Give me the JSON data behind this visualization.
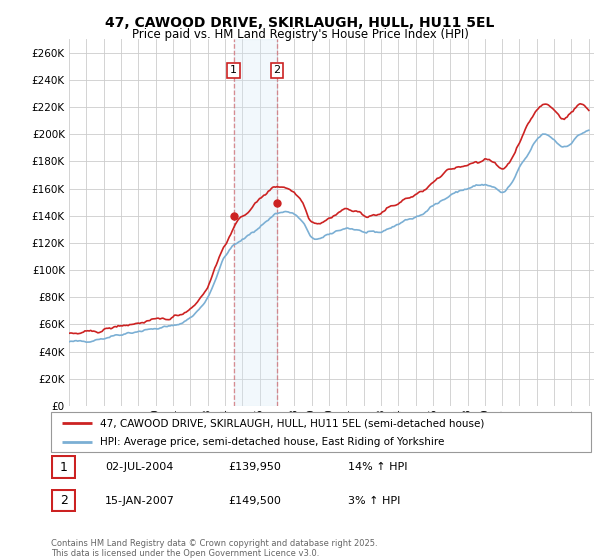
{
  "title": "47, CAWOOD DRIVE, SKIRLAUGH, HULL, HU11 5EL",
  "subtitle": "Price paid vs. HM Land Registry's House Price Index (HPI)",
  "ylim": [
    0,
    270000
  ],
  "yticks": [
    0,
    20000,
    40000,
    60000,
    80000,
    100000,
    120000,
    140000,
    160000,
    180000,
    200000,
    220000,
    240000,
    260000
  ],
  "sale1_price": 139950,
  "sale1_hpi_pct": "14%",
  "sale2_price": 149500,
  "sale2_hpi_pct": "3%",
  "legend_line1": "47, CAWOOD DRIVE, SKIRLAUGH, HULL, HU11 5EL (semi-detached house)",
  "legend_line2": "HPI: Average price, semi-detached house, East Riding of Yorkshire",
  "footer": "Contains HM Land Registry data © Crown copyright and database right 2025.\nThis data is licensed under the Open Government Licence v3.0.",
  "sale1_display_date": "02-JUL-2004",
  "sale2_display_date": "15-JAN-2007",
  "line_color_hpi": "#7bafd4",
  "line_color_price": "#cc2222",
  "annotation_box_color": "#cc2222",
  "shading_color": "#d6e8f7",
  "background_color": "#ffffff",
  "grid_color": "#cccccc"
}
